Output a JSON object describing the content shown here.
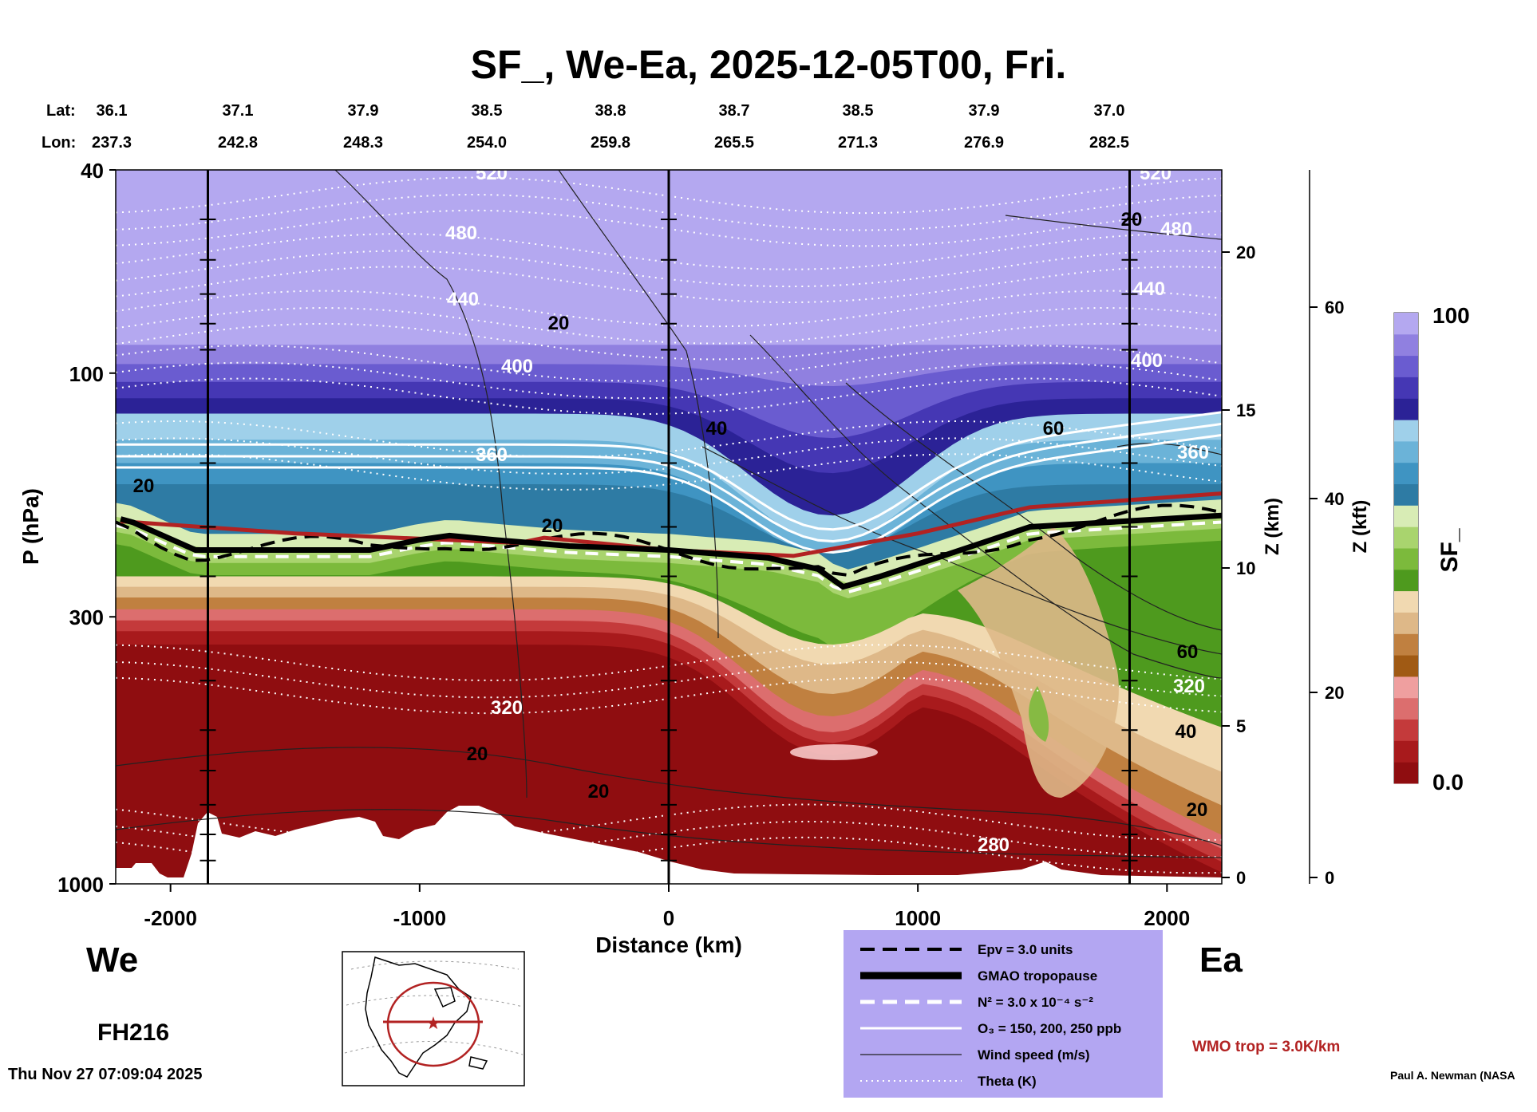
{
  "chart_data": {
    "type": "heatmap",
    "title": "SF_, We-Ea, 2025-12-05T00, Fri.",
    "header": {
      "lat_label": "Lat:",
      "lon_label": "Lon:",
      "lat": [
        "36.1",
        "37.1",
        "37.9",
        "38.5",
        "38.8",
        "38.7",
        "38.5",
        "37.9",
        "37.0"
      ],
      "lon": [
        "237.3",
        "242.8",
        "248.3",
        "254.0",
        "259.8",
        "265.5",
        "271.3",
        "276.9",
        "282.5"
      ]
    },
    "xlabel": "Distance (km)",
    "xlim": [
      -2220,
      2220
    ],
    "x_ticks": [
      "-2000",
      "-1000",
      "0",
      "1000",
      "2000"
    ],
    "ylabel": "P (hPa)",
    "ylim": [
      1000,
      40
    ],
    "y_scale": "log",
    "y_ticks": [
      "40",
      "100",
      "300",
      "1000"
    ],
    "z_km_label": "Z (km)",
    "z_km_ticks": [
      "0",
      "5",
      "10",
      "15",
      "20"
    ],
    "z_kft_label": "Z (kft)",
    "z_kft_ticks": [
      "0",
      "20",
      "40",
      "60"
    ],
    "colorbar_label": "SF_",
    "colorbar_range": [
      "0.0",
      "100"
    ],
    "colorbar_colors": [
      "#8f0d10",
      "#a81a1c",
      "#c43a3b",
      "#dc6e6e",
      "#ef9f9f",
      "#a05a14",
      "#c08040",
      "#deb888",
      "#f1d9b1",
      "#4e9a1e",
      "#7cba3c",
      "#a9d46e",
      "#d8ecb5",
      "#2e7ba4",
      "#3f94c2",
      "#6bb3d8",
      "#9fd0ea",
      "#2b2296",
      "#4537b4",
      "#6a5cd0",
      "#9080e0",
      "#b4a8f0"
    ],
    "theta_labels": [
      "520",
      "480",
      "440",
      "400",
      "360",
      "320",
      "280"
    ],
    "wind_labels": [
      "20",
      "40",
      "60"
    ],
    "tropopause_km": [
      {
        "x": -2200,
        "p": 193
      },
      {
        "x": -2150,
        "p": 196
      },
      {
        "x": -1900,
        "p": 222
      },
      {
        "x": -1200,
        "p": 222
      },
      {
        "x": -1000,
        "p": 212
      },
      {
        "x": -880,
        "p": 208
      },
      {
        "x": -700,
        "p": 212
      },
      {
        "x": -400,
        "p": 218
      },
      {
        "x": 0,
        "p": 222
      },
      {
        "x": 400,
        "p": 230
      },
      {
        "x": 600,
        "p": 242
      },
      {
        "x": 700,
        "p": 262
      },
      {
        "x": 850,
        "p": 250
      },
      {
        "x": 1100,
        "p": 228
      },
      {
        "x": 1450,
        "p": 200
      },
      {
        "x": 2220,
        "p": 190
      }
    ],
    "wmo_tropopause": [
      {
        "x": -2200,
        "p": 195
      },
      {
        "x": -1500,
        "p": 206
      },
      {
        "x": -600,
        "p": 215
      },
      {
        "x": -500,
        "p": 210
      },
      {
        "x": 0,
        "p": 222
      },
      {
        "x": 500,
        "p": 228
      },
      {
        "x": 1000,
        "p": 206
      },
      {
        "x": 1450,
        "p": 183
      },
      {
        "x": 2220,
        "p": 172
      }
    ],
    "section_markers_km": [
      -1850,
      0,
      1850
    ],
    "legend": [
      {
        "label": "Epv = 3.0 units",
        "style": "dashed-black"
      },
      {
        "label": "GMAO tropopause",
        "style": "thick-black"
      },
      {
        "label": "N² = 3.0 x 10⁻⁴ s⁻²",
        "style": "dashed-white"
      },
      {
        "label": "O₃ = 150, 200, 250 ppb",
        "style": "solid-white"
      },
      {
        "label": "Wind speed (m/s)",
        "style": "thin-black"
      },
      {
        "label": "Theta (K)",
        "style": "dotted-white"
      }
    ],
    "wmo_note": "WMO trop = 3.0K/km",
    "west_label": "We",
    "east_label": "Ea",
    "forecast_hour": "FH216",
    "timestamp": "Thu Nov 27 07:09:04 2025",
    "credit": "Paul A. Newman (NASA"
  },
  "colors": {
    "legend_bg": "#b3a6f2",
    "wmo": "#b22222",
    "upper": "#b4a8f0"
  }
}
